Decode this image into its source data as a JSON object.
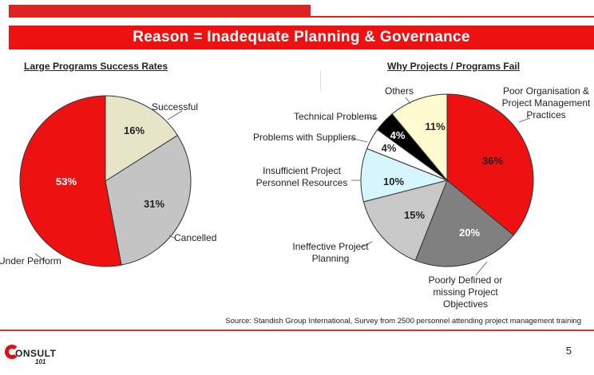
{
  "banner": {
    "title": "Reason = Inadequate Planning & Governance"
  },
  "chart_data": [
    {
      "type": "pie",
      "title": "Large Programs Success Rates",
      "slices": [
        {
          "label": "Successful",
          "value": 16,
          "value_label": "16%",
          "color": "#e6e5c8"
        },
        {
          "label": "Cancelled",
          "value": 31,
          "value_label": "31%",
          "color": "#c4c4c4"
        },
        {
          "label": "Under Perform",
          "value": 53,
          "value_label": "53%",
          "color": "#ee1111"
        }
      ]
    },
    {
      "type": "pie",
      "title": "Why Projects / Programs Fail",
      "slices": [
        {
          "label": "Poor Organisation & Project Management Practices",
          "label_lines": [
            "Poor Organisation &",
            "Project Management",
            "Practices"
          ],
          "value": 36,
          "value_label": "36%",
          "color": "#ee1111"
        },
        {
          "label": "Poorly Defined or missing Project Objectives",
          "label_lines": [
            "Poorly Defined or",
            "missing Project",
            "Objectives"
          ],
          "value": 20,
          "value_label": "20%",
          "color": "#808080"
        },
        {
          "label": "Ineffective Project Planning",
          "label_lines": [
            "Ineffective Project",
            "Planning"
          ],
          "value": 15,
          "value_label": "15%",
          "color": "#c8c8c8"
        },
        {
          "label": "Insufficient Project Personnel Resources",
          "label_lines": [
            "Insufficient Project",
            "Personnel Resources"
          ],
          "value": 10,
          "value_label": "10%",
          "color": "#d6f6fd"
        },
        {
          "label": "Problems with Suppliers",
          "label_lines": [
            "Problems with Suppliers"
          ],
          "value": 4,
          "value_label": "4%",
          "color": "#ffffff"
        },
        {
          "label": "Technical Problems",
          "label_lines": [
            "Technical Problems"
          ],
          "value": 4,
          "value_label": "4%",
          "color": "#000000"
        },
        {
          "label": "Others",
          "label_lines": [
            "Others"
          ],
          "value": 11,
          "value_label": "11%",
          "color": "#fffbd0"
        }
      ]
    }
  ],
  "source": "Source: Standish Group International, Survey from 2500 personnel attending project management training",
  "footer": {
    "logo_text": "ONSULT",
    "logo_sub": "101",
    "page_number": "5"
  },
  "colors": {
    "accent": "#ee1111"
  }
}
